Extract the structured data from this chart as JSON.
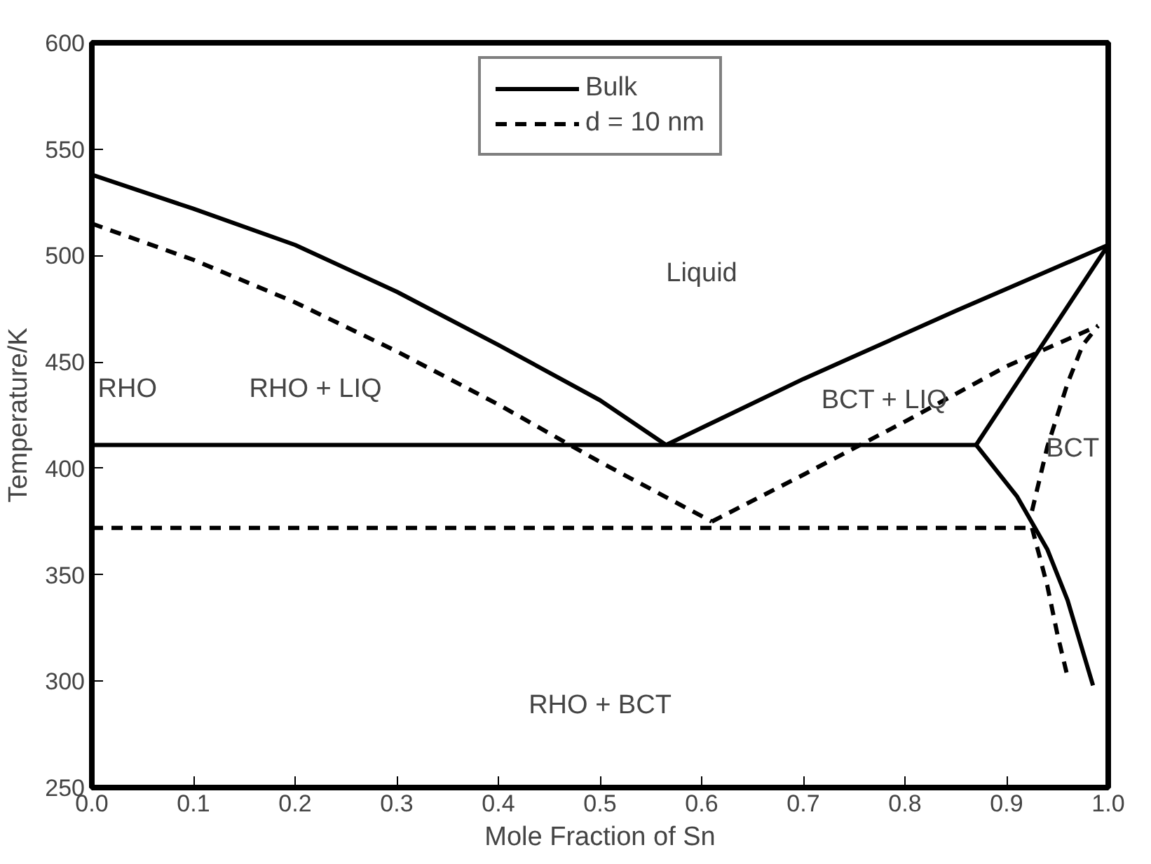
{
  "chart_data": {
    "type": "line",
    "xlabel": "Mole Fraction of Sn",
    "ylabel": "Temperature/K",
    "xlim": [
      0,
      1
    ],
    "ylim": [
      250,
      600
    ],
    "xticks": [
      {
        "value": 0,
        "label": "0.0"
      },
      0.1,
      0.2,
      0.3,
      0.4,
      0.5,
      0.6,
      0.7,
      0.8,
      0.9,
      {
        "value": 1,
        "label": "1.0"
      }
    ],
    "yticks": [
      250,
      300,
      350,
      400,
      450,
      500,
      550,
      600
    ],
    "grid": false,
    "legend": "top",
    "marker": "none",
    "series": [
      {
        "name": "Bulk",
        "color": "#000000",
        "line_style": "solid",
        "x": [
          0,
          0.1,
          0.2,
          0.3,
          0.4,
          0.5,
          0.565
        ],
        "values": [
          538,
          522,
          505,
          483,
          458,
          432,
          411
        ]
      },
      {
        "color": "#000000",
        "line_style": "solid",
        "x": [
          0.565,
          0.7,
          0.85,
          1.0
        ],
        "values": [
          411,
          442,
          474,
          505
        ]
      },
      {
        "color": "#000000",
        "line_style": "solid",
        "x": [
          0,
          0.87
        ],
        "values": [
          411,
          411
        ]
      },
      {
        "color": "#000000",
        "line_style": "solid",
        "x": [
          0.87,
          1.0
        ],
        "values": [
          411,
          505
        ]
      },
      {
        "color": "#000000",
        "line_style": "solid",
        "x": [
          0.87,
          0.91,
          0.94,
          0.96,
          0.985
        ],
        "values": [
          411,
          387,
          362,
          338,
          298
        ]
      },
      {
        "name": "d = 10 nm",
        "color": "#000000",
        "line_style": "dashed",
        "x": [
          0,
          0.1,
          0.2,
          0.3,
          0.4,
          0.5,
          0.61
        ],
        "values": [
          515,
          498,
          478,
          455,
          430,
          403,
          375
        ]
      },
      {
        "color": "#000000",
        "line_style": "dashed",
        "x": [
          0.61,
          0.7,
          0.8,
          0.9,
          0.99
        ],
        "values": [
          375,
          397,
          422,
          448,
          467
        ]
      },
      {
        "color": "#000000",
        "line_style": "dashed",
        "x": [
          0,
          0.925
        ],
        "values": [
          372,
          372
        ]
      },
      {
        "color": "#000000",
        "line_style": "dashed",
        "x": [
          0.925,
          0.94,
          0.96,
          0.975,
          0.99
        ],
        "values": [
          380,
          410,
          440,
          458,
          467
        ]
      },
      {
        "color": "#000000",
        "line_style": "dashed",
        "x": [
          0.925,
          0.94,
          0.95,
          0.96
        ],
        "values": [
          372,
          345,
          322,
          302
        ]
      }
    ],
    "annotations": [
      "Liquid",
      "RHO",
      "RHO + LIQ",
      "BCT + LIQ",
      "BCT",
      "RHO + BCT"
    ]
  }
}
